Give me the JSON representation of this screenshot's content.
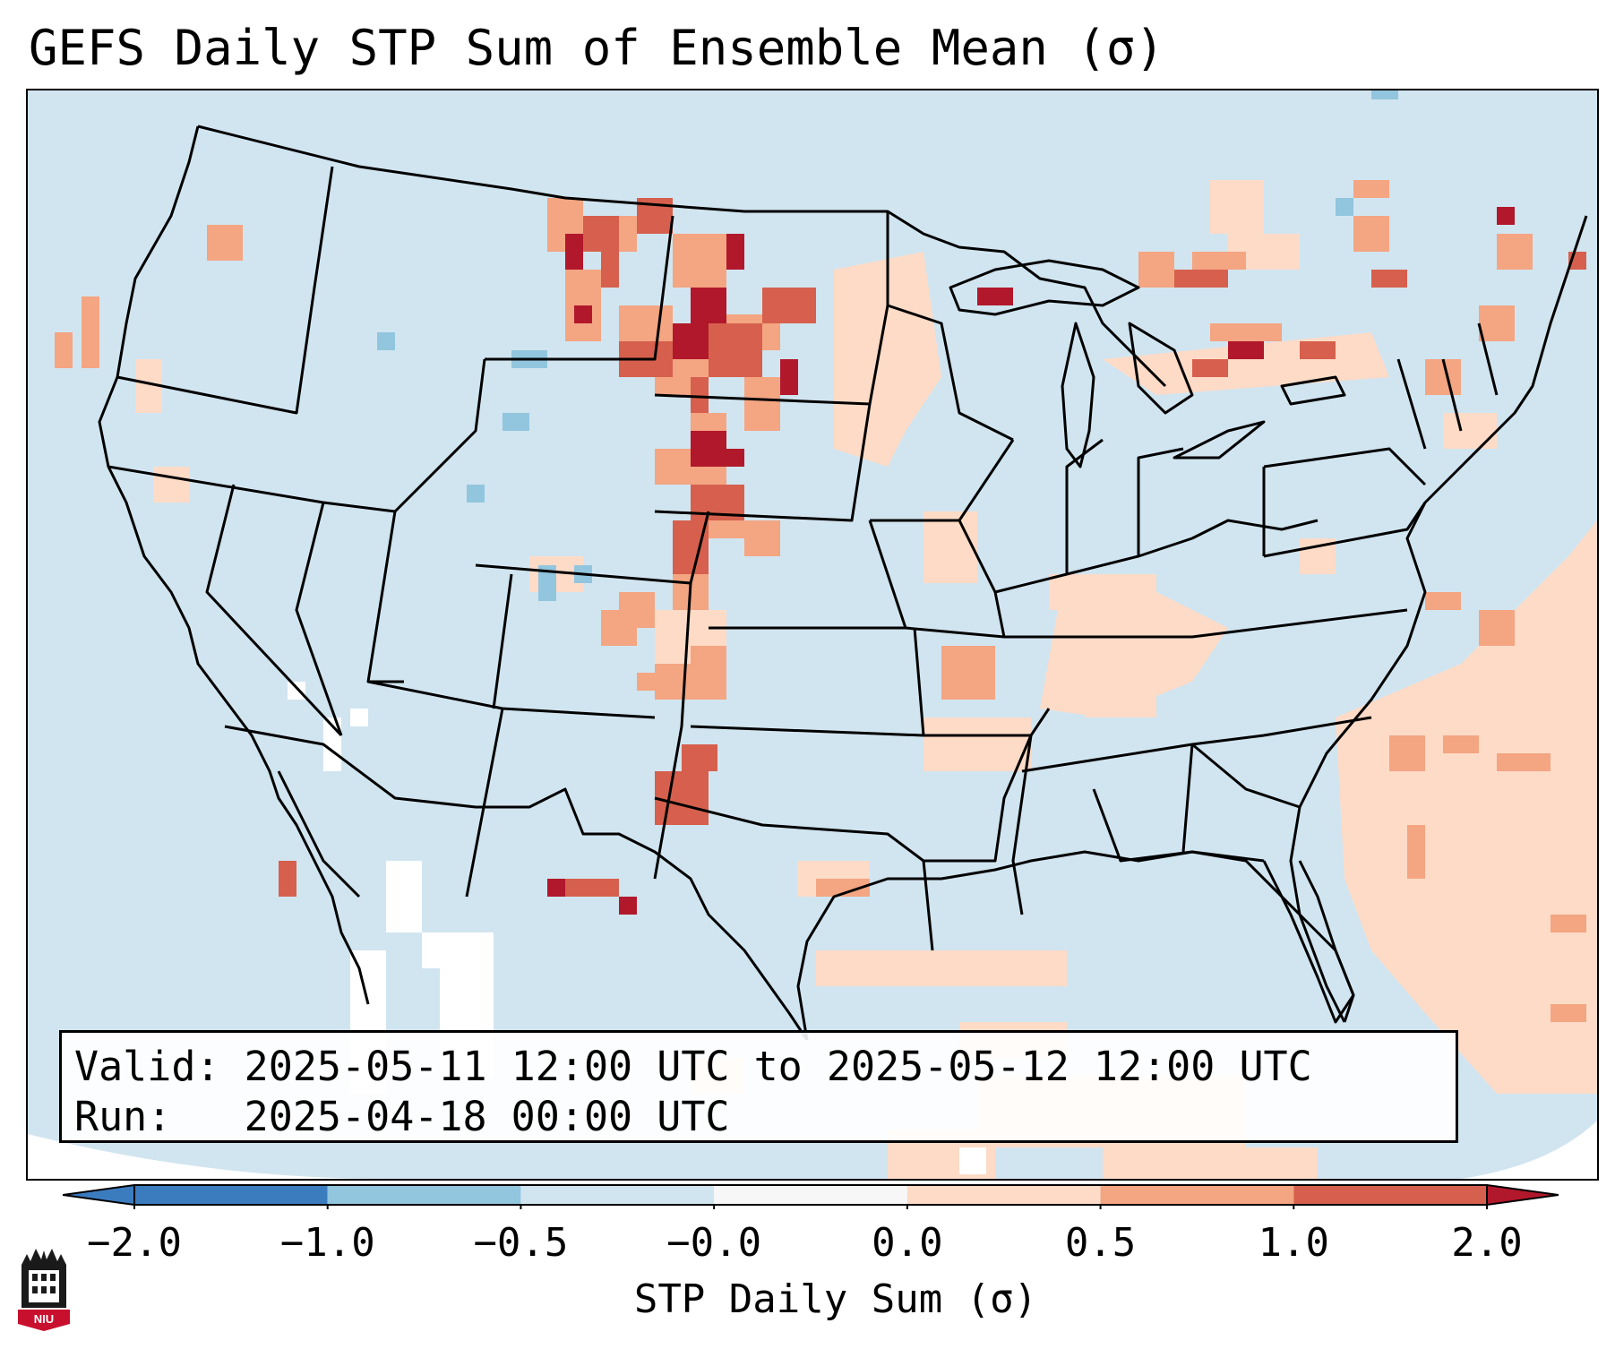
{
  "title": "GEFS Daily STP Sum of Ensemble Mean (σ)",
  "info": {
    "valid_label": "Valid:",
    "valid_value": "2025-05-11 12:00 UTC to 2025-05-12 12:00 UTC",
    "run_label": "Run:",
    "run_value": "2025-04-18 00:00 UTC"
  },
  "colorbar": {
    "label": "STP Daily Sum (σ)",
    "ticks": [
      "−2.0",
      "−1.0",
      "−0.5",
      "−0.0",
      "0.0",
      "0.5",
      "1.0",
      "2.0"
    ],
    "colors": [
      "#3b7cbf",
      "#92c5de",
      "#d1e5f0",
      "#f7f7f7",
      "#fddbc7",
      "#f4a582",
      "#d6604d",
      "#b2182b"
    ],
    "extend": "both"
  },
  "map": {
    "background_color": "#d1e5f0",
    "boundaries": [
      "state borders",
      "country borders",
      "coastlines"
    ]
  },
  "logo": {
    "text": "NIU"
  }
}
